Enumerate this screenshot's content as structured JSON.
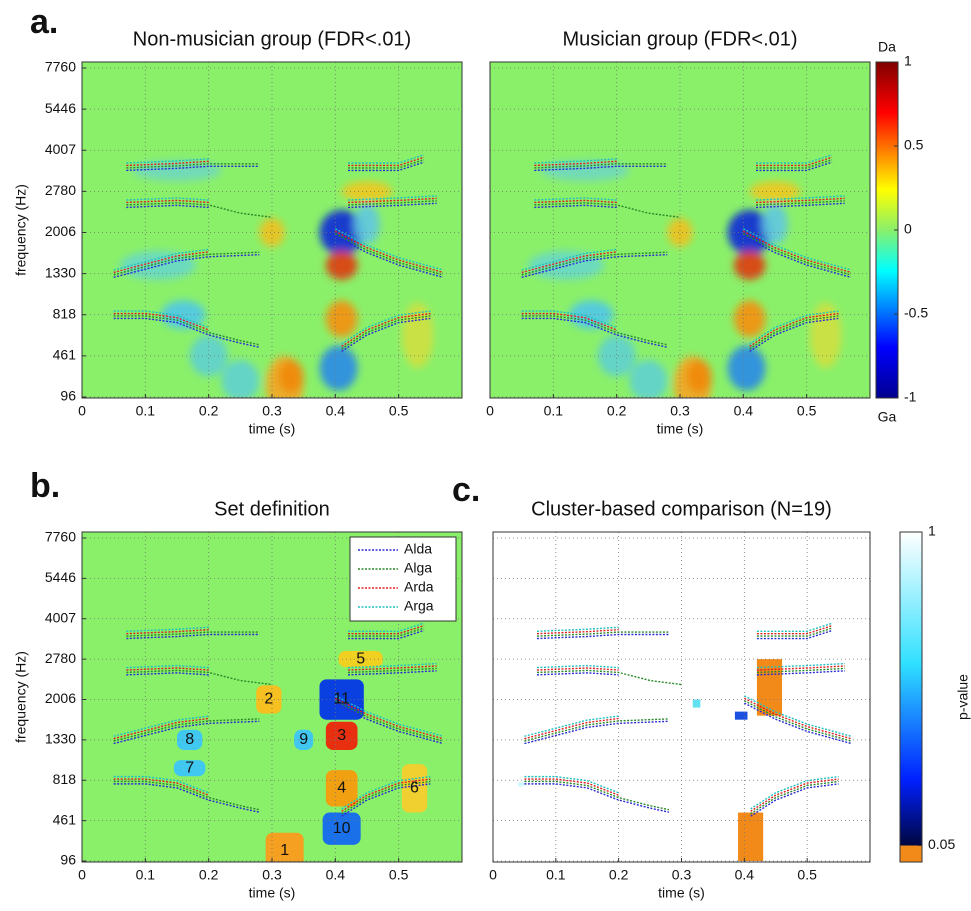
{
  "panel_labels": [
    "a.",
    "b.",
    "c."
  ],
  "chart_data": [
    {
      "type": "heatmap",
      "title": "Non-musician group (FDR<.01)",
      "xlabel": "time (s)",
      "ylabel": "frequency (Hz)",
      "xlim": [
        0,
        0.6
      ],
      "xticks": [
        0,
        0.1,
        0.2,
        0.3,
        0.4,
        0.5
      ],
      "yticks": [
        96,
        461,
        818,
        1330,
        2006,
        2780,
        4007,
        5446,
        7760
      ],
      "grid": true
    },
    {
      "type": "heatmap",
      "title": "Musician group (FDR<.01)",
      "xlabel": "time (s)",
      "xlim": [
        0,
        0.6
      ],
      "xticks": [
        0,
        0.1,
        0.2,
        0.3,
        0.4,
        0.5
      ],
      "grid": true
    },
    {
      "type": "colorbar",
      "top_label": "Da",
      "bottom_label": "Ga",
      "ylim": [
        -1,
        1
      ],
      "yticks": [
        -1,
        -0.5,
        0,
        0.5,
        1
      ]
    },
    {
      "type": "clusters",
      "title": "Set definition",
      "xlabel": "time (s)",
      "ylabel": "frequency (Hz)",
      "xlim": [
        0,
        0.6
      ],
      "xticks": [
        0,
        0.1,
        0.2,
        0.3,
        0.4,
        0.5
      ],
      "yticks": [
        96,
        461,
        818,
        1330,
        2006,
        2780,
        4007,
        5446,
        7760
      ],
      "grid": true,
      "legend": "upper right",
      "series": [
        {
          "name": "Alda",
          "color": "#2b2bd4"
        },
        {
          "name": "Alga",
          "color": "#2a8a2a"
        },
        {
          "name": "Arda",
          "color": "#e02020"
        },
        {
          "name": "Arga",
          "color": "#20c0c0"
        }
      ],
      "cluster_labels": [
        "1",
        "2",
        "3",
        "4",
        "5",
        "6",
        "7",
        "8",
        "9",
        "10",
        "11"
      ]
    },
    {
      "type": "comparison",
      "title": "Cluster-based comparison (N=19)",
      "xlabel": "time (s)",
      "xlim": [
        0,
        0.6
      ],
      "xticks": [
        0,
        0.1,
        0.2,
        0.3,
        0.4,
        0.5
      ],
      "grid": true
    },
    {
      "type": "colorbar",
      "label": "p-value",
      "ylim": [
        0,
        1
      ],
      "yticks": [
        0.05,
        1
      ]
    }
  ]
}
